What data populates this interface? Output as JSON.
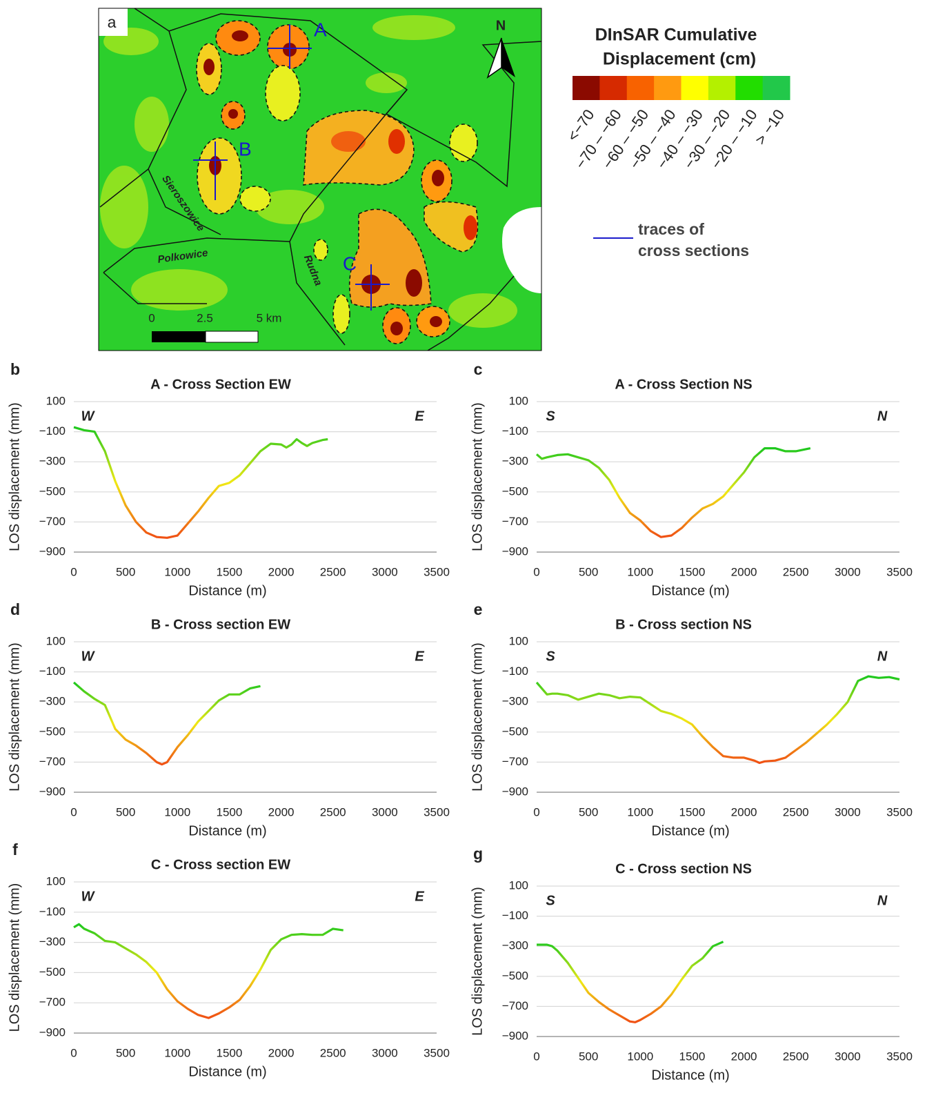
{
  "map": {
    "panel": "a",
    "north": "N",
    "sites": [
      "A",
      "B",
      "C"
    ],
    "towns": [
      "Sieroszowice",
      "Polkowice",
      "Rudna"
    ],
    "scale": [
      "0",
      "2.5",
      "5 km"
    ]
  },
  "legend": {
    "title_lines": [
      "DInSAR Cumulative",
      "Displacement (cm)"
    ],
    "classes": [
      {
        "label": "<−70",
        "color": "#8b0a00"
      },
      {
        "label": "−70 – −60",
        "color": "#d62a00"
      },
      {
        "label": "−60 – −50",
        "color": "#f86200"
      },
      {
        "label": "−50 – −40",
        "color": "#ff9a10"
      },
      {
        "label": "−40 – −30",
        "color": "#ffff00"
      },
      {
        "label": "−30 – −20",
        "color": "#b4f000"
      },
      {
        "label": "−20 – −10",
        "color": "#22dd00"
      },
      {
        "label": "> −10",
        "color": "#22c84a"
      }
    ],
    "trace_label_lines": [
      "traces of",
      "cross sections"
    ],
    "trace_color": "#1a1acc"
  },
  "chart_data": [
    {
      "type": "line",
      "panel": "b",
      "title": "A - Cross Section EW",
      "xlabel": "Distance (m)",
      "ylabel": "LOS displacement (mm)",
      "direction_left": "W",
      "direction_right": "E",
      "xlim": [
        0,
        3500
      ],
      "xticks": [
        0,
        500,
        1000,
        1500,
        2000,
        2500,
        3000,
        3500
      ],
      "ylim": [
        -900,
        100
      ],
      "yticks": [
        100,
        {
          "value": -100,
          "label": "−100"
        },
        {
          "value": -300,
          "label": "−300"
        },
        {
          "value": -500,
          "label": "−500"
        },
        {
          "value": -700,
          "label": "−700"
        },
        {
          "value": -900,
          "label": "−900"
        }
      ],
      "grid": true,
      "x": [
        0,
        100,
        200,
        300,
        400,
        500,
        600,
        700,
        800,
        900,
        1000,
        1100,
        1200,
        1300,
        1400,
        1500,
        1600,
        1700,
        1800,
        1900,
        2000,
        2050,
        2100,
        2150,
        2200,
        2250,
        2300,
        2400,
        2450
      ],
      "series": [
        {
          "colors": [
            "#1ec81e",
            "#f0e814",
            "#f05014"
          ],
          "values": [
            -70,
            -90,
            -100,
            -230,
            -430,
            -590,
            -700,
            -770,
            -800,
            -805,
            -790,
            -710,
            -630,
            -540,
            -460,
            -440,
            -390,
            -310,
            -230,
            -180,
            -185,
            -205,
            -185,
            -150,
            -175,
            -195,
            -175,
            -155,
            -150
          ]
        }
      ]
    },
    {
      "type": "line",
      "panel": "c",
      "title": "A - Cross Section NS",
      "xlabel": "Distance (m)",
      "ylabel": "LOS displacement (mm)",
      "direction_left": "S",
      "direction_right": "N",
      "xlim": [
        0,
        3500
      ],
      "xticks": [
        0,
        500,
        1000,
        1500,
        2000,
        2500,
        3000,
        3500
      ],
      "ylim": [
        -900,
        100
      ],
      "yticks": [
        100,
        {
          "value": -100,
          "label": "−100"
        },
        {
          "value": -300,
          "label": "−300"
        },
        {
          "value": -500,
          "label": "−500"
        },
        {
          "value": -700,
          "label": "−700"
        },
        {
          "value": -900,
          "label": "−900"
        }
      ],
      "grid": true,
      "x": [
        0,
        50,
        100,
        200,
        300,
        400,
        500,
        600,
        700,
        800,
        900,
        1000,
        1100,
        1200,
        1300,
        1400,
        1500,
        1600,
        1700,
        1800,
        1900,
        2000,
        2100,
        2200,
        2300,
        2400,
        2500,
        2640
      ],
      "series": [
        {
          "colors": [
            "#1ec81e",
            "#f0e814",
            "#f05014"
          ],
          "values": [
            -250,
            -280,
            -270,
            -255,
            -250,
            -270,
            -290,
            -340,
            -420,
            -540,
            -640,
            -690,
            -760,
            -800,
            -790,
            -740,
            -670,
            -610,
            -580,
            -530,
            -450,
            -370,
            -270,
            -210,
            -210,
            -230,
            -230,
            -210
          ]
        }
      ]
    },
    {
      "type": "line",
      "panel": "d",
      "title": "B - Cross section EW",
      "xlabel": "Distance (m)",
      "ylabel": "LOS displacement (mm)",
      "direction_left": "W",
      "direction_right": "E",
      "xlim": [
        0,
        3500
      ],
      "xticks": [
        0,
        500,
        1000,
        1500,
        2000,
        2500,
        3000,
        3500
      ],
      "ylim": [
        -900,
        100
      ],
      "yticks": [
        100,
        {
          "value": -100,
          "label": "−100"
        },
        {
          "value": -300,
          "label": "−300"
        },
        {
          "value": -500,
          "label": "−500"
        },
        {
          "value": -700,
          "label": "−700"
        },
        {
          "value": -900,
          "label": "−900"
        }
      ],
      "grid": true,
      "x": [
        0,
        100,
        200,
        300,
        400,
        500,
        600,
        700,
        800,
        850,
        900,
        1000,
        1100,
        1200,
        1300,
        1400,
        1500,
        1600,
        1700,
        1800
      ],
      "series": [
        {
          "colors": [
            "#1ec81e",
            "#f0e814",
            "#f05014"
          ],
          "values": [
            -170,
            -230,
            -280,
            -320,
            -480,
            -550,
            -590,
            -640,
            -700,
            -715,
            -700,
            -600,
            -520,
            -430,
            -360,
            -290,
            -250,
            -250,
            -210,
            -195
          ]
        }
      ]
    },
    {
      "type": "line",
      "panel": "e",
      "title": "B - Cross section NS",
      "xlabel": "Distance (m)",
      "ylabel": "LOS displacement (mm)",
      "direction_left": "S",
      "direction_right": "N",
      "xlim": [
        0,
        3500
      ],
      "xticks": [
        0,
        500,
        1000,
        1500,
        2000,
        2500,
        3000,
        3500
      ],
      "ylim": [
        -900,
        100
      ],
      "yticks": [
        100,
        {
          "value": -100,
          "label": "−100"
        },
        {
          "value": -300,
          "label": "−300"
        },
        {
          "value": -500,
          "label": "−500"
        },
        {
          "value": -700,
          "label": "−700"
        },
        {
          "value": -900,
          "label": "−900"
        }
      ],
      "grid": true,
      "x": [
        0,
        100,
        150,
        200,
        300,
        400,
        500,
        600,
        700,
        800,
        900,
        1000,
        1100,
        1200,
        1300,
        1400,
        1500,
        1600,
        1700,
        1800,
        1900,
        2000,
        2100,
        2150,
        2200,
        2300,
        2400,
        2500,
        2600,
        2700,
        2800,
        2900,
        3000,
        3100,
        3200,
        3300,
        3400,
        3500
      ],
      "series": [
        {
          "colors": [
            "#1ec81e",
            "#f0e814",
            "#f05014"
          ],
          "values": [
            -170,
            -250,
            -245,
            -245,
            -255,
            -285,
            -265,
            -245,
            -255,
            -275,
            -265,
            -270,
            -315,
            -360,
            -380,
            -410,
            -450,
            -530,
            -600,
            -660,
            -670,
            -670,
            -690,
            -705,
            -695,
            -690,
            -670,
            -620,
            -570,
            -510,
            -450,
            -380,
            -300,
            -160,
            -130,
            -140,
            -135,
            -150
          ]
        }
      ]
    },
    {
      "type": "line",
      "panel": "f",
      "title": "C -  Cross section EW",
      "xlabel": "Distance (m)",
      "ylabel": "LOS displacement (mm)",
      "direction_left": "W",
      "direction_right": "E",
      "xlim": [
        0,
        3500
      ],
      "xticks": [
        0,
        500,
        1000,
        1500,
        2000,
        2500,
        3000,
        3500
      ],
      "ylim": [
        -900,
        100
      ],
      "yticks": [
        100,
        {
          "value": -100,
          "label": "−100"
        },
        {
          "value": -300,
          "label": "−300"
        },
        {
          "value": -500,
          "label": "−500"
        },
        {
          "value": -700,
          "label": "−700"
        },
        {
          "value": -900,
          "label": "−900"
        }
      ],
      "grid": true,
      "x": [
        0,
        50,
        100,
        200,
        300,
        400,
        500,
        600,
        700,
        800,
        900,
        1000,
        1100,
        1200,
        1300,
        1400,
        1500,
        1600,
        1700,
        1800,
        1900,
        2000,
        2100,
        2200,
        2300,
        2400,
        2500,
        2600
      ],
      "series": [
        {
          "colors": [
            "#1ec81e",
            "#f0e814",
            "#f05014"
          ],
          "values": [
            -200,
            -180,
            -210,
            -240,
            -290,
            -300,
            -340,
            -380,
            -430,
            -500,
            -610,
            -690,
            -740,
            -780,
            -800,
            -770,
            -730,
            -680,
            -590,
            -480,
            -350,
            -280,
            -250,
            -245,
            -250,
            -250,
            -210,
            -220
          ]
        }
      ]
    },
    {
      "type": "line",
      "panel": "g",
      "title": "C - Cross section NS",
      "xlabel": "Distance (m)",
      "ylabel": "LOS displacement (mm)",
      "direction_left": "S",
      "direction_right": "N",
      "xlim": [
        0,
        3500
      ],
      "xticks": [
        0,
        500,
        1000,
        1500,
        2000,
        2500,
        3000,
        3500
      ],
      "ylim": [
        -900,
        100
      ],
      "yticks": [
        100,
        {
          "value": -100,
          "label": "−100"
        },
        {
          "value": -300,
          "label": "−300"
        },
        {
          "value": -500,
          "label": "−500"
        },
        {
          "value": -700,
          "label": "−700"
        },
        {
          "value": -900,
          "label": "−900"
        }
      ],
      "grid": true,
      "x": [
        0,
        100,
        150,
        200,
        300,
        400,
        500,
        600,
        700,
        800,
        900,
        950,
        1000,
        1100,
        1200,
        1300,
        1400,
        1500,
        1600,
        1700,
        1800
      ],
      "series": [
        {
          "colors": [
            "#1ec81e",
            "#f0e814",
            "#f05014"
          ],
          "values": [
            -290,
            -290,
            -300,
            -330,
            -410,
            -510,
            -610,
            -670,
            -720,
            -760,
            -800,
            -805,
            -790,
            -750,
            -700,
            -620,
            -520,
            -430,
            -380,
            -300,
            -270
          ]
        }
      ]
    }
  ]
}
